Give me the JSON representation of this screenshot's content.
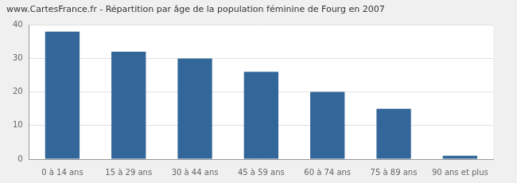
{
  "chart_data": {
    "type": "bar",
    "title": "www.CartesFrance.fr - Répartition par âge de la population féminine de Fourg en 2007",
    "categories": [
      "0 à 14 ans",
      "15 à 29 ans",
      "30 à 44 ans",
      "45 à 59 ans",
      "60 à 74 ans",
      "75 à 89 ans",
      "90 ans et plus"
    ],
    "values": [
      38,
      32,
      30,
      26,
      20,
      15,
      1
    ],
    "color": "#336699",
    "ylim": [
      0,
      40
    ],
    "yticks": [
      0,
      10,
      20,
      30,
      40
    ],
    "grid": true
  }
}
